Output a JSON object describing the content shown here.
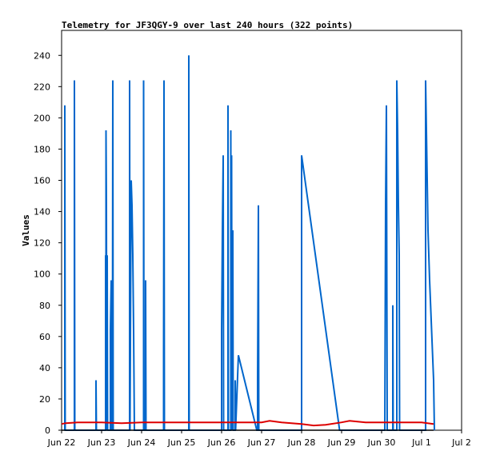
{
  "chart_data": {
    "type": "line",
    "title": "Telemetry for JF3QGY-9 over last 240 hours (322 points)",
    "xlabel": "",
    "ylabel": "Values",
    "x_ticks": [
      "Jun 22",
      "Jun 23",
      "Jun 24",
      "Jun 25",
      "Jun 26",
      "Jun 27",
      "Jun 28",
      "Jun 29",
      "Jun 30",
      "Jul 1",
      "Jul 2"
    ],
    "xlim": [
      0,
      10
    ],
    "ylim": [
      0,
      256
    ],
    "y_ticks": [
      0,
      20,
      40,
      60,
      80,
      100,
      120,
      140,
      160,
      180,
      200,
      220,
      240
    ],
    "grid": false,
    "colors": {
      "series_blue": "#0066cc",
      "series_red": "#dd0000",
      "baseline": "#000000"
    },
    "series": [
      {
        "color": "#0066cc",
        "points": [
          [
            0.08,
            0
          ],
          [
            0.08,
            208
          ],
          [
            0.09,
            0
          ],
          [
            0.32,
            0
          ],
          [
            0.32,
            224
          ],
          [
            0.33,
            0
          ],
          [
            0.86,
            0
          ],
          [
            0.86,
            32
          ],
          [
            0.87,
            0
          ],
          [
            1.1,
            0
          ],
          [
            1.1,
            112
          ],
          [
            1.11,
            0
          ],
          [
            1.11,
            192
          ],
          [
            1.12,
            144
          ],
          [
            1.13,
            0
          ],
          [
            1.14,
            112
          ],
          [
            1.15,
            0
          ],
          [
            1.22,
            0
          ],
          [
            1.22,
            64
          ],
          [
            1.24,
            96
          ],
          [
            1.25,
            0
          ],
          [
            1.27,
            0
          ],
          [
            1.28,
            224
          ],
          [
            1.29,
            0
          ],
          [
            1.7,
            0
          ],
          [
            1.7,
            224
          ],
          [
            1.71,
            0
          ],
          [
            1.73,
            112
          ],
          [
            1.74,
            160
          ],
          [
            1.76,
            144
          ],
          [
            1.78,
            112
          ],
          [
            1.8,
            64
          ],
          [
            1.82,
            0
          ],
          [
            1.84,
            0
          ],
          [
            2.05,
            0
          ],
          [
            2.05,
            224
          ],
          [
            2.06,
            0
          ],
          [
            2.1,
            0
          ],
          [
            2.1,
            96
          ],
          [
            2.11,
            0
          ],
          [
            2.55,
            0
          ],
          [
            2.55,
            48
          ],
          [
            2.56,
            224
          ],
          [
            2.57,
            0
          ],
          [
            3.18,
            0
          ],
          [
            3.18,
            240
          ],
          [
            3.19,
            0
          ],
          [
            4.0,
            0
          ],
          [
            4.0,
            64
          ],
          [
            4.02,
            128
          ],
          [
            4.04,
            176
          ],
          [
            4.05,
            0
          ],
          [
            4.16,
            0
          ],
          [
            4.16,
            208
          ],
          [
            4.17,
            0
          ],
          [
            4.23,
            0
          ],
          [
            4.23,
            192
          ],
          [
            4.24,
            0
          ],
          [
            4.25,
            176
          ],
          [
            4.26,
            0
          ],
          [
            4.28,
            128
          ],
          [
            4.29,
            0
          ],
          [
            4.34,
            0
          ],
          [
            4.34,
            32
          ],
          [
            4.35,
            0
          ],
          [
            4.42,
            48
          ],
          [
            4.88,
            0
          ],
          [
            4.9,
            0
          ],
          [
            4.9,
            32
          ],
          [
            4.92,
            144
          ],
          [
            4.93,
            0
          ],
          [
            6.0,
            0
          ],
          [
            6.0,
            176
          ],
          [
            6.95,
            0
          ],
          [
            8.08,
            0
          ],
          [
            8.1,
            144
          ],
          [
            8.12,
            208
          ],
          [
            8.14,
            0
          ],
          [
            8.28,
            0
          ],
          [
            8.28,
            80
          ],
          [
            8.29,
            0
          ],
          [
            8.38,
            0
          ],
          [
            8.38,
            224
          ],
          [
            8.4,
            192
          ],
          [
            8.42,
            144
          ],
          [
            8.44,
            112
          ],
          [
            8.45,
            0
          ],
          [
            9.1,
            0
          ],
          [
            9.1,
            224
          ],
          [
            9.12,
            192
          ],
          [
            9.14,
            160
          ],
          [
            9.16,
            128
          ],
          [
            9.2,
            96
          ],
          [
            9.25,
            64
          ],
          [
            9.3,
            32
          ],
          [
            9.32,
            0
          ]
        ]
      },
      {
        "color": "#dd0000",
        "points": [
          [
            0.0,
            4
          ],
          [
            0.1,
            4.5
          ],
          [
            0.4,
            5
          ],
          [
            1.0,
            5
          ],
          [
            1.5,
            4.5
          ],
          [
            2.0,
            5
          ],
          [
            2.6,
            5
          ],
          [
            3.18,
            5
          ],
          [
            3.5,
            5
          ],
          [
            4.0,
            5
          ],
          [
            4.45,
            5
          ],
          [
            5.0,
            5
          ],
          [
            5.2,
            6
          ],
          [
            5.5,
            5
          ],
          [
            6.0,
            4
          ],
          [
            6.3,
            3
          ],
          [
            6.6,
            3.5
          ],
          [
            7.0,
            5
          ],
          [
            7.2,
            6
          ],
          [
            7.6,
            5
          ],
          [
            8.0,
            5
          ],
          [
            8.5,
            5
          ],
          [
            9.0,
            5
          ],
          [
            9.3,
            4
          ]
        ]
      },
      {
        "color": "#000000",
        "points": [
          [
            0.0,
            0
          ],
          [
            9.3,
            0
          ]
        ]
      }
    ]
  }
}
